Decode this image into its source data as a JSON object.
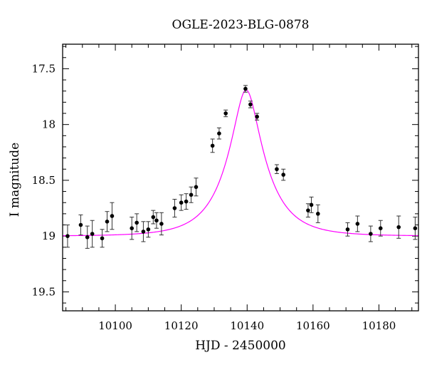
{
  "chart_data": {
    "type": "scatter",
    "title": "OGLE-2023-BLG-0878",
    "xlabel": "HJD - 2450000",
    "ylabel": "I magnitude",
    "xlim": [
      10084,
      10192
    ],
    "ylim": [
      19.67,
      17.28
    ],
    "y_inverted": true,
    "x_ticks": [
      10100,
      10120,
      10140,
      10160,
      10180
    ],
    "y_ticks": [
      17.5,
      18,
      18.5,
      19,
      19.5
    ],
    "x_tick_labels": [
      "10100",
      "10120",
      "10140",
      "10160",
      "10180"
    ],
    "y_tick_labels": [
      "17.5",
      "18",
      "18.5",
      "19",
      "19.5"
    ],
    "grid": false,
    "legend": "none",
    "series": [
      {
        "kind": "points_with_errorbars",
        "color": "#000000",
        "points": [
          {
            "x": 10085.5,
            "y": 19.0,
            "err": 0.1
          },
          {
            "x": 10089.5,
            "y": 18.9,
            "err": 0.09
          },
          {
            "x": 10091.5,
            "y": 19.01,
            "err": 0.1
          },
          {
            "x": 10093.0,
            "y": 18.98,
            "err": 0.12
          },
          {
            "x": 10096.0,
            "y": 19.02,
            "err": 0.08
          },
          {
            "x": 10097.5,
            "y": 18.87,
            "err": 0.09
          },
          {
            "x": 10099.0,
            "y": 18.82,
            "err": 0.12
          },
          {
            "x": 10105.0,
            "y": 18.93,
            "err": 0.1
          },
          {
            "x": 10106.5,
            "y": 18.88,
            "err": 0.08
          },
          {
            "x": 10108.5,
            "y": 18.96,
            "err": 0.09
          },
          {
            "x": 10110.0,
            "y": 18.94,
            "err": 0.07
          },
          {
            "x": 10111.5,
            "y": 18.83,
            "err": 0.06
          },
          {
            "x": 10112.5,
            "y": 18.86,
            "err": 0.07
          },
          {
            "x": 10114.0,
            "y": 18.89,
            "err": 0.1
          },
          {
            "x": 10118.0,
            "y": 18.75,
            "err": 0.08
          },
          {
            "x": 10120.0,
            "y": 18.7,
            "err": 0.07
          },
          {
            "x": 10121.5,
            "y": 18.69,
            "err": 0.07
          },
          {
            "x": 10123.0,
            "y": 18.63,
            "err": 0.07
          },
          {
            "x": 10124.5,
            "y": 18.56,
            "err": 0.08
          },
          {
            "x": 10129.5,
            "y": 18.19,
            "err": 0.06
          },
          {
            "x": 10131.5,
            "y": 18.08,
            "err": 0.05
          },
          {
            "x": 10133.5,
            "y": 17.9,
            "err": 0.03
          },
          {
            "x": 10139.5,
            "y": 17.68,
            "err": 0.03
          },
          {
            "x": 10141.0,
            "y": 17.82,
            "err": 0.03
          },
          {
            "x": 10143.0,
            "y": 17.93,
            "err": 0.03
          },
          {
            "x": 10149.0,
            "y": 18.4,
            "err": 0.04
          },
          {
            "x": 10151.0,
            "y": 18.45,
            "err": 0.05
          },
          {
            "x": 10158.5,
            "y": 18.77,
            "err": 0.06
          },
          {
            "x": 10159.5,
            "y": 18.72,
            "err": 0.07
          },
          {
            "x": 10161.5,
            "y": 18.8,
            "err": 0.08
          },
          {
            "x": 10170.5,
            "y": 18.94,
            "err": 0.06
          },
          {
            "x": 10173.5,
            "y": 18.89,
            "err": 0.07
          },
          {
            "x": 10177.5,
            "y": 18.98,
            "err": 0.07
          },
          {
            "x": 10180.5,
            "y": 18.93,
            "err": 0.07
          },
          {
            "x": 10186.0,
            "y": 18.92,
            "err": 0.1
          },
          {
            "x": 10191.0,
            "y": 18.93,
            "err": 0.1
          }
        ]
      },
      {
        "kind": "model_curve",
        "color": "#ff00ff",
        "model": {
          "t0": 10139.7,
          "tE": 11.5,
          "u0": 0.31,
          "base": 19.0,
          "sampling_step": 0.25
        }
      }
    ]
  }
}
